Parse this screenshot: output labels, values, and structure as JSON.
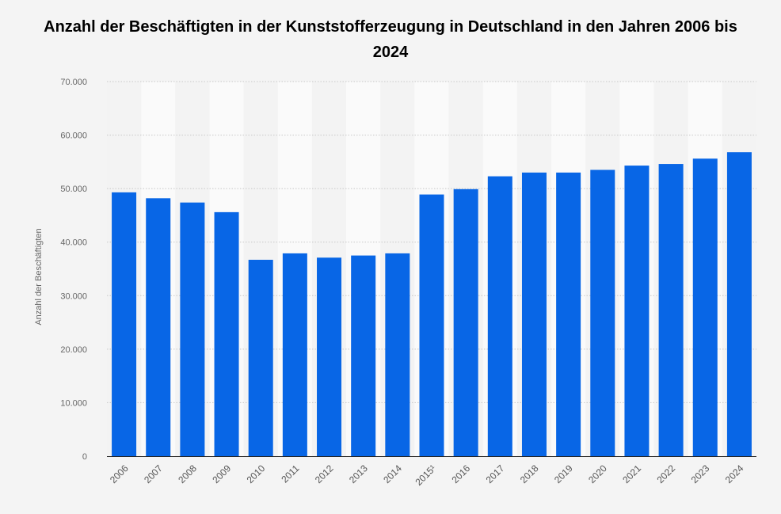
{
  "chart_data": {
    "type": "bar",
    "title": "Anzahl der Beschäftigten in der Kunststofferzeugung in Deutschland in den Jahren 2006 bis 2024",
    "xlabel": "",
    "ylabel": "Anzahl der Beschäftigten",
    "ylim": [
      0,
      70000
    ],
    "yticks": [
      "0",
      "10.000",
      "20.000",
      "30.000",
      "40.000",
      "50.000",
      "60.000",
      "70.000"
    ],
    "grid": true,
    "categories": [
      "2006",
      "2007",
      "2008",
      "2009",
      "2010",
      "2011",
      "2012",
      "2013",
      "2014",
      "2015¹",
      "2016",
      "2017",
      "2018",
      "2019",
      "2020",
      "2021",
      "2022",
      "2023",
      "2024"
    ],
    "values": [
      49300,
      48200,
      47400,
      45600,
      36700,
      37900,
      37100,
      37500,
      37900,
      48900,
      49900,
      52300,
      53000,
      53000,
      53500,
      54300,
      54600,
      55600,
      56800
    ],
    "bar_color": "#0866e6"
  }
}
